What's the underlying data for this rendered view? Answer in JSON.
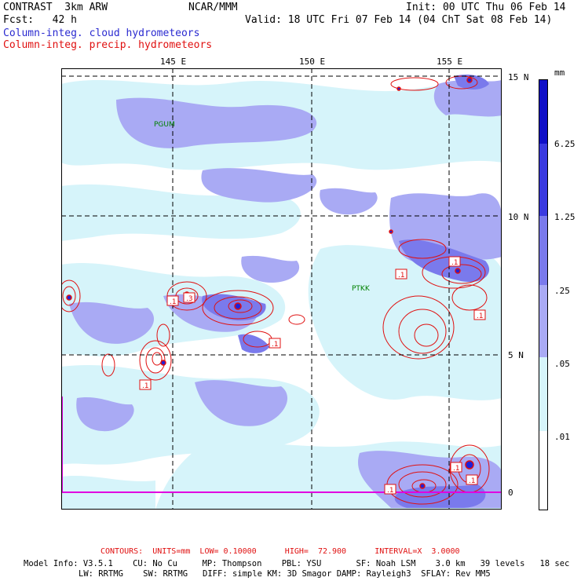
{
  "header": {
    "left_line1": "CONTRAST  3km ARW",
    "center_line1": "NCAR/MMM",
    "right_line1": "Init: 00 UTC Thu 06 Feb 14",
    "left_line2": "Fcst:   42 h",
    "right_line2": "Valid: 18 UTC Fri 07 Feb 14 (04 ChT Sat 08 Feb 14)",
    "field1": "Column-integ. cloud hydrometeors",
    "field2": "Column-integ. precip. hydrometeors"
  },
  "map": {
    "lon_labels": [
      "145 E",
      "150 E",
      "155 E"
    ],
    "lat_labels": [
      "15 N",
      "10 N",
      "5 N",
      "0"
    ],
    "stations": [
      "PGUM",
      "PTKK"
    ],
    "contour_labels": [
      ".1",
      ".3",
      ".1",
      ".1",
      ".1",
      ".1",
      ".1",
      ".1",
      ".1",
      ".1"
    ]
  },
  "legend": {
    "units": "mm",
    "levels": [
      "6.25",
      "1.25",
      ".25",
      ".05",
      ".01"
    ],
    "colors": [
      "#1010c8",
      "#3a3ae0",
      "#7a7aec",
      "#a9aaf4",
      "#d6f4fa",
      "#ffffff"
    ]
  },
  "footer": {
    "contours": "CONTOURS:  UNITS=mm  LOW= 0.10000      HIGH=  72.900      INTERVAL=X  3.0000",
    "model_line1": "Model Info: V3.5.1    CU: No Cu     MP: Thompson    PBL: YSU       SF: Noah LSM    3.0 km   39 levels   18 sec",
    "model_line2": "LW: RRTMG    SW: RRTMG   DIFF: simple KM: 3D Smagor DAMP: Rayleigh3  SFLAY: Rev MM5"
  }
}
